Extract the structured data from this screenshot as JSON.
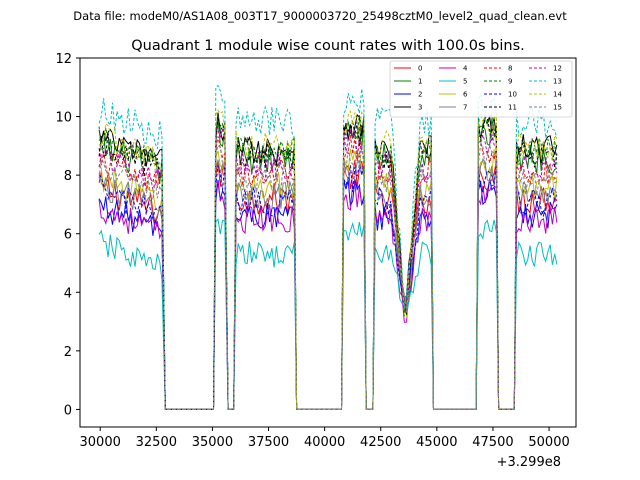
{
  "header": {
    "file_label": "Data file: modeM0/AS1A08_003T17_9000003720_25498cztM0_level2_quad_clean.evt",
    "title": "Quadrant 1 module wise count rates with 100.0s bins."
  },
  "chart_data": {
    "type": "line",
    "title": "Quadrant 1 module wise count rates with 100.0s bins.",
    "xlabel": "",
    "ylabel": "",
    "x_offset_label": "+3.299e8",
    "xlim": [
      29100,
      51200
    ],
    "ylim": [
      -0.6,
      12
    ],
    "x_ticks": [
      30000,
      32500,
      35000,
      37500,
      40000,
      42500,
      45000,
      47500,
      50000
    ],
    "x_tick_labels": [
      "30000",
      "32500",
      "35000",
      "37500",
      "40000",
      "42500",
      "45000",
      "47500",
      "50000"
    ],
    "y_ticks": [
      0,
      2,
      4,
      6,
      8,
      10,
      12
    ],
    "y_tick_labels": [
      "0",
      "2",
      "4",
      "6",
      "8",
      "10",
      "12"
    ],
    "legend_position": "top-right",
    "observation_segments": [
      [
        29950,
        32800
      ],
      [
        35150,
        35600
      ],
      [
        36050,
        38650
      ],
      [
        40850,
        41750
      ],
      [
        42250,
        44750
      ],
      [
        46850,
        47650
      ],
      [
        48550,
        50350
      ]
    ],
    "gap_level": 0,
    "series": [
      {
        "name": "0",
        "color": "#ff0000",
        "dashed": false,
        "level": 7.2,
        "amp": 0.55
      },
      {
        "name": "1",
        "color": "#008000",
        "dashed": false,
        "level": 8.6,
        "amp": 0.55
      },
      {
        "name": "2",
        "color": "#0000ff",
        "dashed": false,
        "level": 6.6,
        "amp": 0.5
      },
      {
        "name": "3",
        "color": "#000000",
        "dashed": false,
        "level": 8.9,
        "amp": 0.5
      },
      {
        "name": "4",
        "color": "#bf00bf",
        "dashed": false,
        "level": 6.5,
        "amp": 0.5
      },
      {
        "name": "5",
        "color": "#00bfbf",
        "dashed": false,
        "level": 5.3,
        "amp": 0.45
      },
      {
        "name": "6",
        "color": "#bfbf00",
        "dashed": false,
        "level": 7.6,
        "amp": 0.5
      },
      {
        "name": "7",
        "color": "#808080",
        "dashed": false,
        "level": 7.3,
        "amp": 0.5
      },
      {
        "name": "8",
        "color": "#ff0000",
        "dashed": true,
        "level": 8.1,
        "amp": 0.5
      },
      {
        "name": "9",
        "color": "#008000",
        "dashed": true,
        "level": 8.8,
        "amp": 0.5
      },
      {
        "name": "10",
        "color": "#0000ff",
        "dashed": true,
        "level": 7.1,
        "amp": 0.5
      },
      {
        "name": "11",
        "color": "#000000",
        "dashed": true,
        "level": 8.7,
        "amp": 0.5
      },
      {
        "name": "12",
        "color": "#bf00bf",
        "dashed": true,
        "level": 8.3,
        "amp": 0.5
      },
      {
        "name": "13",
        "color": "#00bfbf",
        "dashed": true,
        "level": 9.8,
        "amp": 0.55
      },
      {
        "name": "14",
        "color": "#bfbf00",
        "dashed": true,
        "level": 9.0,
        "amp": 0.5
      },
      {
        "name": "15",
        "color": "#808080",
        "dashed": true,
        "level": 7.8,
        "amp": 0.5
      }
    ]
  }
}
